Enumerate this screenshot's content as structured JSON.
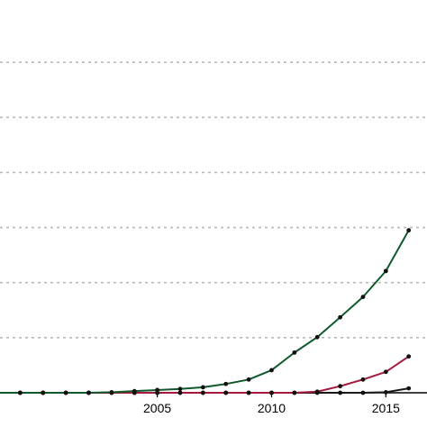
{
  "chart_data": {
    "type": "line",
    "x_range": [
      1998,
      2016.8
    ],
    "y_range": [
      0,
      7
    ],
    "grid": true,
    "x_ticks": [
      2005,
      2010,
      2015
    ],
    "x_tick_labels": [
      "2005",
      "2010",
      "2015"
    ],
    "y_gridlines": [
      1,
      2,
      3,
      4,
      5,
      6
    ],
    "series": [
      {
        "color": "#0f5a2c",
        "x": [
          1998,
          1999,
          2000,
          2001,
          2002,
          2003,
          2004,
          2005,
          2006,
          2007,
          2008,
          2009,
          2010,
          2011,
          2012,
          2013,
          2014,
          2015,
          2016
        ],
        "y": [
          0,
          0,
          0,
          0,
          0,
          0.01,
          0.03,
          0.05,
          0.07,
          0.1,
          0.16,
          0.24,
          0.41,
          0.73,
          1.01,
          1.37,
          1.74,
          2.21,
          2.95
        ]
      },
      {
        "color": "#a31a3c",
        "x": [
          1998,
          1999,
          2000,
          2001,
          2002,
          2003,
          2004,
          2005,
          2006,
          2007,
          2008,
          2009,
          2010,
          2011,
          2012,
          2013,
          2014,
          2015,
          2016
        ],
        "y": [
          0,
          0,
          0,
          0,
          0,
          0,
          0,
          0,
          0,
          0,
          0,
          0,
          0,
          0,
          0.02,
          0.12,
          0.24,
          0.38,
          0.66
        ]
      },
      {
        "color": "#1a1a1a",
        "x": [
          1998,
          1999,
          2000,
          2001,
          2002,
          2003,
          2004,
          2005,
          2006,
          2007,
          2008,
          2009,
          2010,
          2011,
          2012,
          2013,
          2014,
          2015,
          2016
        ],
        "y": [
          0,
          0,
          0,
          0,
          0,
          0,
          0,
          0,
          0,
          0,
          0,
          0,
          0,
          0,
          0,
          0,
          0,
          0.01,
          0.08
        ]
      }
    ]
  }
}
